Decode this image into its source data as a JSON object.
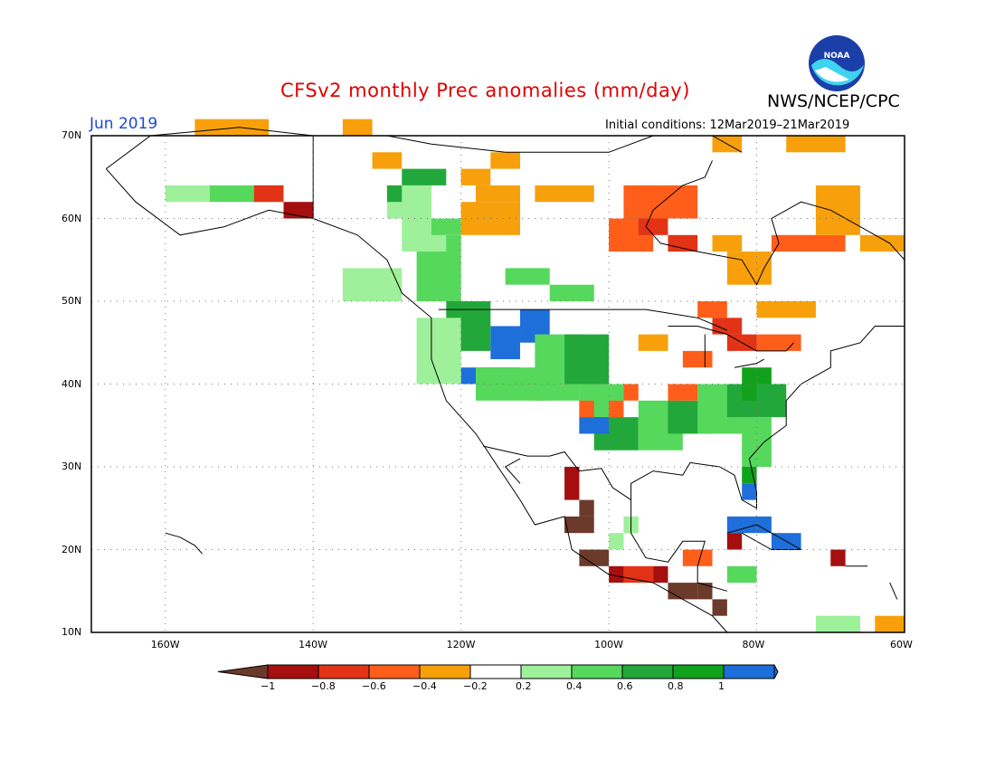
{
  "title": "CFSv2 monthly Prec anomalies (mm/day)",
  "agency": "NWS/NCEP/CPC",
  "logo_text": "NOAA",
  "forecast_month": "Jun 2019",
  "initial_conditions": "Initial conditions: 12Mar2019–21Mar2019",
  "colors": {
    "title": "#e00000",
    "period": "#1d46d6",
    "palette": [
      "#6b3a2a",
      "#a50f0f",
      "#e23316",
      "#ff5e1a",
      "#f7a00b",
      "#ffffff",
      "#9ef09a",
      "#56d85c",
      "#22a83a",
      "#11a21c",
      "#1e6fd9"
    ]
  },
  "axes": {
    "lat_labels": [
      "70N",
      "60N",
      "50N",
      "40N",
      "30N",
      "20N",
      "10N"
    ],
    "lon_labels": [
      "160W",
      "140W",
      "120W",
      "100W",
      "80W",
      "60W"
    ],
    "lon_range": [
      -170,
      -60
    ],
    "lat_range": [
      10,
      70
    ]
  },
  "colorbar": {
    "labels": [
      "−1",
      "−0.8",
      "−0.6",
      "−0.4",
      "−0.2",
      "0.2",
      "0.4",
      "0.6",
      "0.8",
      "1"
    ]
  }
}
